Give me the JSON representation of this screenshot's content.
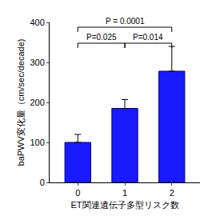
{
  "chart_data": {
    "type": "bar",
    "xlabel": "ET関連遺伝子多型リスク数",
    "ylabel": "baPWV変化量（cm/sec/decade)",
    "categories": [
      "0",
      "1",
      "2"
    ],
    "values": [
      100,
      185,
      278
    ],
    "errors": [
      20,
      22,
      62
    ],
    "color": "#1a1aff",
    "ylim": [
      0,
      400
    ],
    "yticks": [
      0,
      100,
      200,
      300,
      400
    ],
    "grid": false,
    "annotations": [
      {
        "text": "P = 0.0001",
        "from": "0",
        "to": "2"
      },
      {
        "text": "P=0.025",
        "from": "0",
        "to": "1"
      },
      {
        "text": "P=0.014",
        "from": "1",
        "to": "2"
      }
    ]
  }
}
